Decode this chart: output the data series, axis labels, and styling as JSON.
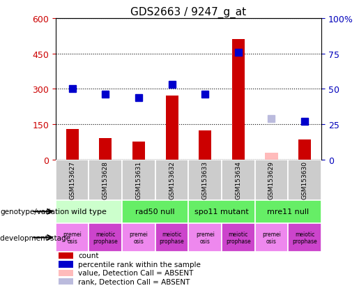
{
  "title": "GDS2663 / 9247_g_at",
  "samples": [
    "GSM153627",
    "GSM153628",
    "GSM153631",
    "GSM153632",
    "GSM153633",
    "GSM153634",
    "GSM153629",
    "GSM153630"
  ],
  "bar_values": [
    130,
    90,
    75,
    270,
    125,
    510,
    28,
    85
  ],
  "bar_colors": [
    "#cc0000",
    "#cc0000",
    "#cc0000",
    "#cc0000",
    "#cc0000",
    "#cc0000",
    "#ffbbbb",
    "#cc0000"
  ],
  "rank_values": [
    50,
    46,
    44,
    53,
    46,
    76,
    29,
    27
  ],
  "rank_colors": [
    "#0000cc",
    "#0000cc",
    "#0000cc",
    "#0000cc",
    "#0000cc",
    "#0000cc",
    "#bbbbdd",
    "#0000cc"
  ],
  "ylim_left": [
    0,
    600
  ],
  "ylim_right": [
    0,
    100
  ],
  "yticks_left": [
    0,
    150,
    300,
    450,
    600
  ],
  "yticks_right": [
    0,
    25,
    50,
    75,
    100
  ],
  "genotype_groups": [
    {
      "label": "wild type",
      "start": 0,
      "end": 2,
      "color": "#ccffcc"
    },
    {
      "label": "rad50 null",
      "start": 2,
      "end": 4,
      "color": "#66ee66"
    },
    {
      "label": "spo11 mutant",
      "start": 4,
      "end": 6,
      "color": "#66ee66"
    },
    {
      "label": "mre11 null",
      "start": 6,
      "end": 8,
      "color": "#66ee66"
    }
  ],
  "dev_groups": [
    {
      "label": "premei\nosis",
      "start": 0,
      "end": 1,
      "color": "#ee88ee"
    },
    {
      "label": "meiotic\nprophase",
      "start": 1,
      "end": 2,
      "color": "#cc44cc"
    },
    {
      "label": "premei\nosis",
      "start": 2,
      "end": 3,
      "color": "#ee88ee"
    },
    {
      "label": "meiotic\nprophase",
      "start": 3,
      "end": 4,
      "color": "#cc44cc"
    },
    {
      "label": "premei\nosis",
      "start": 4,
      "end": 5,
      "color": "#ee88ee"
    },
    {
      "label": "meiotic\nprophase",
      "start": 5,
      "end": 6,
      "color": "#cc44cc"
    },
    {
      "label": "premei\nosis",
      "start": 6,
      "end": 7,
      "color": "#ee88ee"
    },
    {
      "label": "meiotic\nprophase",
      "start": 7,
      "end": 8,
      "color": "#cc44cc"
    }
  ],
  "left_axis_color": "#cc0000",
  "right_axis_color": "#0000bb",
  "bar_width": 0.38
}
